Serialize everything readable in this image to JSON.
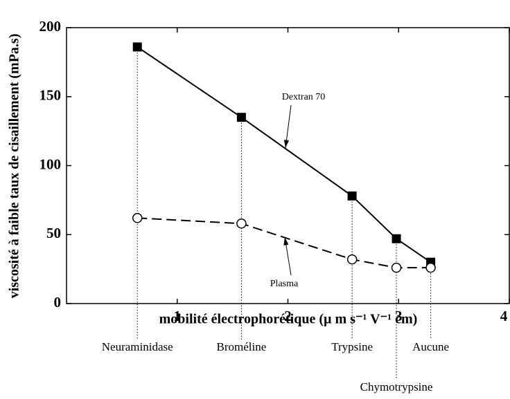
{
  "chart_data": {
    "type": "line",
    "x_label": "mobilité électrophorétique (µ m s⁻¹ V⁻¹ cm)",
    "y_label": "viscosité à faible taux de cisaillement (mPa.s)",
    "x": [
      0.64,
      1.58,
      2.58,
      2.98,
      3.29
    ],
    "point_labels": [
      "Neuraminidase",
      "Broméline",
      "Trypsine",
      "Chymotrypsine",
      "Aucune"
    ],
    "series": [
      {
        "name": "Dextran 70",
        "color": "#000000",
        "values": [
          186,
          135,
          78,
          47,
          30
        ]
      },
      {
        "name": "Plasma",
        "color": "#000000",
        "values": [
          62,
          58,
          32,
          26,
          26
        ]
      }
    ],
    "xlim": [
      0,
      4
    ],
    "ylim": [
      0,
      200
    ],
    "xticks": [
      1,
      2,
      3,
      4
    ],
    "yticks": [
      0,
      50,
      100,
      150,
      200
    ]
  }
}
